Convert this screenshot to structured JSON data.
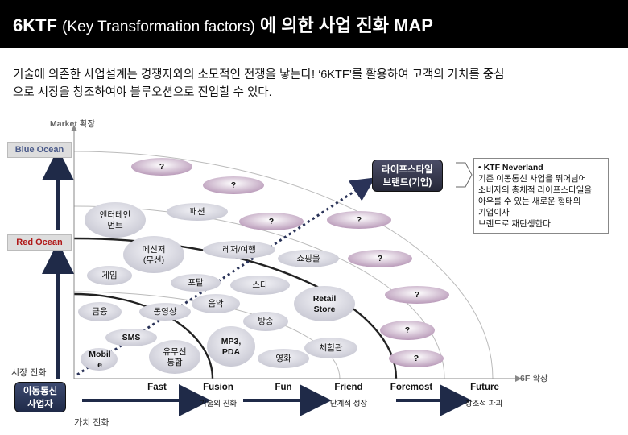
{
  "header": {
    "title_main": "6KTF",
    "title_sub": "(Key Transformation factors)",
    "title_rest": "에 의한 사업 진화 MAP"
  },
  "intro": {
    "line1": "기술에 의존한 사업설계는 경쟁자와의 소모적인 전쟁을 낳는다! ‘6KTF’를 활용하여 고객의 가치를 중심",
    "line2": "으로 시장을 창조하여야 블루오션으로 진입할 수 있다."
  },
  "axes": {
    "y_label_en": "Market",
    "y_label_ko": "확장",
    "x_label_en": "6F",
    "x_label_ko": "확장",
    "market_evolution": "시장 진화",
    "value_evolution": "가치 진화"
  },
  "levels": {
    "blue_ocean": "Blue Ocean",
    "red_ocean": "Red Ocean"
  },
  "origin": {
    "line1": "이동통신",
    "line2": "사업자"
  },
  "target": {
    "line1": "라이프스타일",
    "line2": "브랜드(기업)"
  },
  "info_box": {
    "head": "• KTF Neverland",
    "lines": [
      "기존 이동통신 사업을 뛰어넘어",
      "소비자의 총체적 라이프스타일을",
      "아우를 수 있는 새로운 형태의",
      "기업이자",
      "브랜드로 재탄생한다."
    ]
  },
  "stages": [
    "Fast",
    "Fusion",
    "Fun",
    "Friend",
    "Foremost",
    "Future"
  ],
  "stage_arrows": [
    "기술의 진화",
    "단계적 성장",
    "창조적 파괴"
  ],
  "bubbles": {
    "mobile": "Mobil e",
    "sms": "SMS",
    "finance": "금융",
    "video": "동영상",
    "game": "게임",
    "messenger": "메신저 (무선)",
    "wired_wireless": "유무선 통합",
    "mp3": "MP3, PDA",
    "music": "음악",
    "portal": "포탈",
    "broadcast": "방송",
    "star": "스타",
    "movie": "영화",
    "entertainment": "엔터테인 먼트",
    "fashion": "패션",
    "leisure": "레저/여행",
    "shopping": "쇼핑몰",
    "retail": "Retail Store",
    "experience": "체험관",
    "unknown": "?"
  },
  "colors": {
    "title_bg": "#000000",
    "bubble_gray": "#d9d9e0",
    "bubble_mauve": "#c7b2c8",
    "navy": "#1f2a48",
    "red_text": "#b01818"
  }
}
